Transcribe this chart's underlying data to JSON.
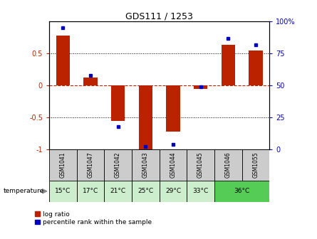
{
  "title": "GDS111 / 1253",
  "samples": [
    "GSM1041",
    "GSM1047",
    "GSM1042",
    "GSM1043",
    "GSM1044",
    "GSM1045",
    "GSM1046",
    "GSM1055"
  ],
  "temp_groups": [
    {
      "label": "15°C",
      "cols": [
        0
      ],
      "color": "#cceecc"
    },
    {
      "label": "17°C",
      "cols": [
        1
      ],
      "color": "#cceecc"
    },
    {
      "label": "21°C",
      "cols": [
        2
      ],
      "color": "#cceecc"
    },
    {
      "label": "25°C",
      "cols": [
        3
      ],
      "color": "#cceecc"
    },
    {
      "label": "29°C",
      "cols": [
        4
      ],
      "color": "#cceecc"
    },
    {
      "label": "33°C",
      "cols": [
        5
      ],
      "color": "#cceecc"
    },
    {
      "label": "36°C",
      "cols": [
        6,
        7
      ],
      "color": "#55cc55"
    }
  ],
  "log_ratio": [
    0.78,
    0.12,
    -0.55,
    -1.0,
    -0.72,
    -0.05,
    0.63,
    0.55
  ],
  "percentile": [
    95,
    58,
    18,
    2,
    4,
    49,
    87,
    82
  ],
  "bar_color": "#bb2200",
  "dot_color": "#0000bb",
  "sample_row_color": "#cccccc",
  "bar_width": 0.5,
  "ylim_left": [
    -1.0,
    1.0
  ],
  "ylim_right": [
    0,
    100
  ],
  "yticks_left": [
    -1,
    -0.5,
    0,
    0.5
  ],
  "ytick_labels_left": [
    "-1",
    "-0.5",
    "0",
    "0.5"
  ],
  "yticks_right": [
    0,
    25,
    50,
    75,
    100
  ],
  "ytick_labels_right": [
    "0",
    "25",
    "50",
    "75",
    "100%"
  ]
}
